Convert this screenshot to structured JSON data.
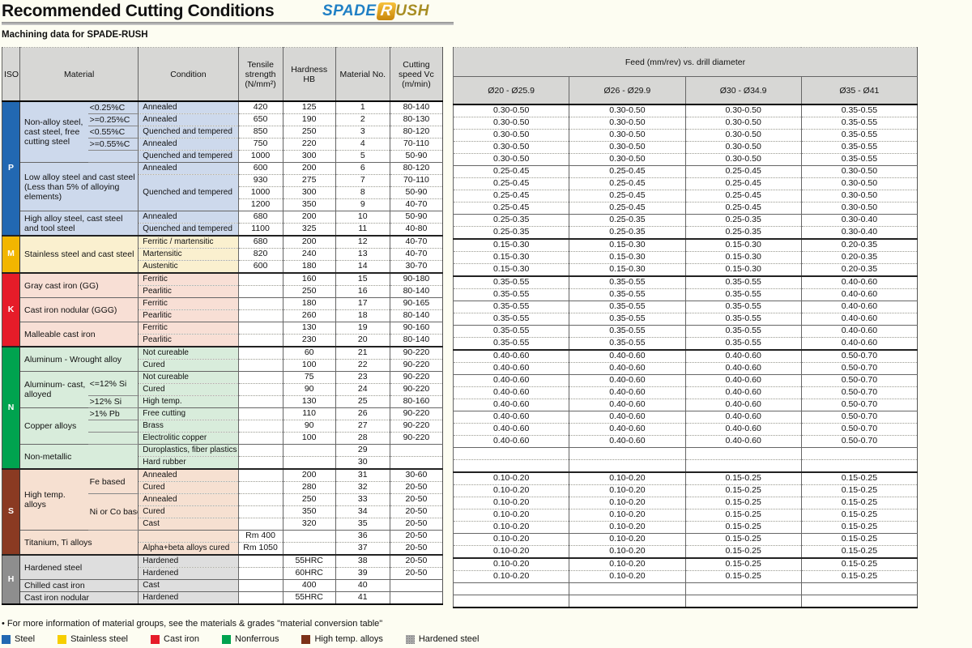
{
  "header": {
    "title": "Recommended Cutting Conditions",
    "subtitle": "Machining data for SPADE-RUSH",
    "logo": {
      "spade": "SPADE",
      "r": "R",
      "ush": "USH"
    }
  },
  "left_columns": {
    "iso": "ISO",
    "material": "Material",
    "condition": "Condition",
    "tensile": "Tensile strength (N/mm²)",
    "hardness": "Hardness HB",
    "material_no": "Material No.",
    "cutting_speed": "Cutting speed Vc (m/min)"
  },
  "feed": {
    "title": "Feed (mm/rev) vs. drill diameter",
    "diameters": [
      "Ø20 - Ø25.9",
      "Ø26 - Ø29.9",
      "Ø30 - Ø34.9",
      "Ø35 - Ø41"
    ]
  },
  "groups": {
    "P": {
      "label": "P",
      "band": "#2268b2",
      "light": "#cdd9ec"
    },
    "M": {
      "label": "M",
      "band": "#f2b600",
      "light": "#faf0cf"
    },
    "K": {
      "label": "K",
      "band": "#e61c29",
      "light": "#f8dfd5"
    },
    "N": {
      "label": "N",
      "band": "#00a34f",
      "light": "#d8ecdb"
    },
    "S": {
      "label": "S",
      "band": "#8a3a22",
      "light": "#f6e0d1"
    },
    "H": {
      "label": "H",
      "band": "#8e8e8e",
      "light": "#dedede"
    }
  },
  "rows": [
    {
      "g": "P",
      "b": "g",
      "iso": {
        "t": "P",
        "s": 11
      },
      "mat": {
        "t": "Non-alloy steel, cast steel, free cutting steel",
        "s": 5,
        "c": 1
      },
      "sub": {
        "t": "<0.25%C",
        "s": 1
      },
      "cond": {
        "t": "Annealed"
      },
      "ts": "420",
      "hb": "125",
      "no": "1",
      "vc": "80-140",
      "f": [
        "0.30-0.50",
        "0.30-0.50",
        "0.30-0.50",
        "0.35-0.55"
      ]
    },
    {
      "g": "P",
      "b": "r",
      "sub": {
        "t": ">=0.25%C",
        "s": 1
      },
      "cond": {
        "t": "Annealed"
      },
      "ts": "650",
      "hb": "190",
      "no": "2",
      "vc": "80-130",
      "f": [
        "0.30-0.50",
        "0.30-0.50",
        "0.30-0.50",
        "0.35-0.55"
      ]
    },
    {
      "g": "P",
      "b": "r",
      "sub": {
        "t": "<0.55%C",
        "s": 1
      },
      "cond": {
        "t": "Quenched and tempered"
      },
      "ts": "850",
      "hb": "250",
      "no": "3",
      "vc": "80-120",
      "f": [
        "0.30-0.50",
        "0.30-0.50",
        "0.30-0.50",
        "0.35-0.55"
      ]
    },
    {
      "g": "P",
      "b": "r",
      "sub": {
        "t": ">=0.55%C",
        "s": 1
      },
      "cond": {
        "t": "Annealed"
      },
      "ts": "750",
      "hb": "220",
      "no": "4",
      "vc": "70-110",
      "f": [
        "0.30-0.50",
        "0.30-0.50",
        "0.30-0.50",
        "0.35-0.55"
      ]
    },
    {
      "g": "P",
      "b": "r",
      "sub": {
        "t": "",
        "s": 1
      },
      "cond": {
        "t": "Quenched and tempered"
      },
      "ts": "1000",
      "hb": "300",
      "no": "5",
      "vc": "50-90",
      "f": [
        "0.30-0.50",
        "0.30-0.50",
        "0.30-0.50",
        "0.35-0.55"
      ]
    },
    {
      "g": "P",
      "b": "m",
      "mat": {
        "t": "Low alloy steel and cast steel (Less than 5% of alloying elements)",
        "s": 4,
        "c": 2
      },
      "cond": {
        "t": "Annealed"
      },
      "ts": "600",
      "hb": "200",
      "no": "6",
      "vc": "80-120",
      "f": [
        "0.25-0.45",
        "0.25-0.45",
        "0.25-0.45",
        "0.30-0.50"
      ]
    },
    {
      "g": "P",
      "b": "r",
      "cond": {
        "t": "Quenched and tempered",
        "s": 3
      },
      "ts": "930",
      "hb": "275",
      "no": "7",
      "vc": "70-110",
      "f": [
        "0.25-0.45",
        "0.25-0.45",
        "0.25-0.45",
        "0.30-0.50"
      ]
    },
    {
      "g": "P",
      "b": "r",
      "ts": "1000",
      "hb": "300",
      "no": "8",
      "vc": "50-90",
      "f": [
        "0.25-0.45",
        "0.25-0.45",
        "0.25-0.45",
        "0.30-0.50"
      ]
    },
    {
      "g": "P",
      "b": "r",
      "ts": "1200",
      "hb": "350",
      "no": "9",
      "vc": "40-70",
      "f": [
        "0.25-0.45",
        "0.25-0.45",
        "0.25-0.45",
        "0.30-0.50"
      ]
    },
    {
      "g": "P",
      "b": "m",
      "mat": {
        "t": "High alloy steel, cast steel and tool steel",
        "s": 2,
        "c": 2
      },
      "cond": {
        "t": "Annealed"
      },
      "ts": "680",
      "hb": "200",
      "no": "10",
      "vc": "50-90",
      "f": [
        "0.25-0.35",
        "0.25-0.35",
        "0.25-0.35",
        "0.30-0.40"
      ]
    },
    {
      "g": "P",
      "b": "r",
      "cond": {
        "t": "Quenched and tempered"
      },
      "ts": "1100",
      "hb": "325",
      "no": "11",
      "vc": "40-80",
      "f": [
        "0.25-0.35",
        "0.25-0.35",
        "0.25-0.35",
        "0.30-0.40"
      ]
    },
    {
      "g": "M",
      "b": "g",
      "iso": {
        "t": "M",
        "s": 3
      },
      "mat": {
        "t": "Stainless steel and cast steel",
        "s": 3,
        "c": 2
      },
      "cond": {
        "t": "Ferritic / martensitic"
      },
      "ts": "680",
      "hb": "200",
      "no": "12",
      "vc": "40-70",
      "f": [
        "0.15-0.30",
        "0.15-0.30",
        "0.15-0.30",
        "0.20-0.35"
      ]
    },
    {
      "g": "M",
      "b": "r",
      "cond": {
        "t": "Martensitic"
      },
      "ts": "820",
      "hb": "240",
      "no": "13",
      "vc": "40-70",
      "f": [
        "0.15-0.30",
        "0.15-0.30",
        "0.15-0.30",
        "0.20-0.35"
      ]
    },
    {
      "g": "M",
      "b": "r",
      "cond": {
        "t": "Austenitic"
      },
      "ts": "600",
      "hb": "180",
      "no": "14",
      "vc": "30-70",
      "f": [
        "0.15-0.30",
        "0.15-0.30",
        "0.15-0.30",
        "0.20-0.35"
      ]
    },
    {
      "g": "K",
      "b": "g",
      "iso": {
        "t": "K",
        "s": 6
      },
      "mat": {
        "t": "Gray cast iron (GG)",
        "s": 2,
        "c": 2
      },
      "cond": {
        "t": "Ferritic"
      },
      "ts": "",
      "hb": "160",
      "no": "15",
      "vc": "90-180",
      "f": [
        "0.35-0.55",
        "0.35-0.55",
        "0.35-0.55",
        "0.40-0.60"
      ]
    },
    {
      "g": "K",
      "b": "r",
      "cond": {
        "t": "Pearlitic"
      },
      "ts": "",
      "hb": "250",
      "no": "16",
      "vc": "80-140",
      "f": [
        "0.35-0.55",
        "0.35-0.55",
        "0.35-0.55",
        "0.40-0.60"
      ]
    },
    {
      "g": "K",
      "b": "m",
      "mat": {
        "t": "Cast iron nodular (GGG)",
        "s": 2,
        "c": 2
      },
      "cond": {
        "t": "Ferritic"
      },
      "ts": "",
      "hb": "180",
      "no": "17",
      "vc": "90-165",
      "f": [
        "0.35-0.55",
        "0.35-0.55",
        "0.35-0.55",
        "0.40-0.60"
      ]
    },
    {
      "g": "K",
      "b": "r",
      "cond": {
        "t": "Pearlitic"
      },
      "ts": "",
      "hb": "260",
      "no": "18",
      "vc": "80-140",
      "f": [
        "0.35-0.55",
        "0.35-0.55",
        "0.35-0.55",
        "0.40-0.60"
      ]
    },
    {
      "g": "K",
      "b": "m",
      "mat": {
        "t": "Malleable cast iron",
        "s": 2,
        "c": 2
      },
      "cond": {
        "t": "Ferritic"
      },
      "ts": "",
      "hb": "130",
      "no": "19",
      "vc": "90-160",
      "f": [
        "0.35-0.55",
        "0.35-0.55",
        "0.35-0.55",
        "0.40-0.60"
      ]
    },
    {
      "g": "K",
      "b": "r",
      "cond": {
        "t": "Pearlitic"
      },
      "ts": "",
      "hb": "230",
      "no": "20",
      "vc": "80-140",
      "f": [
        "0.35-0.55",
        "0.35-0.55",
        "0.35-0.55",
        "0.40-0.60"
      ]
    },
    {
      "g": "N",
      "b": "g",
      "iso": {
        "t": "N",
        "s": 10
      },
      "mat": {
        "t": "Aluminum - Wrought alloy",
        "s": 2,
        "c": 2
      },
      "cond": {
        "t": "Not cureable"
      },
      "ts": "",
      "hb": "60",
      "no": "21",
      "vc": "90-220",
      "f": [
        "0.40-0.60",
        "0.40-0.60",
        "0.40-0.60",
        "0.50-0.70"
      ]
    },
    {
      "g": "N",
      "b": "r",
      "cond": {
        "t": "Cured"
      },
      "ts": "",
      "hb": "100",
      "no": "22",
      "vc": "90-220",
      "f": [
        "0.40-0.60",
        "0.40-0.60",
        "0.40-0.60",
        "0.50-0.70"
      ]
    },
    {
      "g": "N",
      "b": "m",
      "mat": {
        "t": "Aluminum- cast, alloyed",
        "s": 3,
        "c": 1
      },
      "sub": {
        "t": "<=12% Si",
        "s": 2
      },
      "cond": {
        "t": "Not cureable"
      },
      "ts": "",
      "hb": "75",
      "no": "23",
      "vc": "90-220",
      "f": [
        "0.40-0.60",
        "0.40-0.60",
        "0.40-0.60",
        "0.50-0.70"
      ]
    },
    {
      "g": "N",
      "b": "r",
      "cond": {
        "t": "Cured"
      },
      "ts": "",
      "hb": "90",
      "no": "24",
      "vc": "90-220",
      "f": [
        "0.40-0.60",
        "0.40-0.60",
        "0.40-0.60",
        "0.50-0.70"
      ]
    },
    {
      "g": "N",
      "b": "r",
      "sub": {
        "t": ">12% Si",
        "s": 1
      },
      "cond": {
        "t": "High temp."
      },
      "ts": "",
      "hb": "130",
      "no": "25",
      "vc": "80-160",
      "f": [
        "0.40-0.60",
        "0.40-0.60",
        "0.40-0.60",
        "0.50-0.70"
      ]
    },
    {
      "g": "N",
      "b": "m",
      "mat": {
        "t": "Copper alloys",
        "s": 3,
        "c": 1
      },
      "sub": {
        "t": ">1% Pb",
        "s": 1
      },
      "cond": {
        "t": "Free cutting"
      },
      "ts": "",
      "hb": "110",
      "no": "26",
      "vc": "90-220",
      "f": [
        "0.40-0.60",
        "0.40-0.60",
        "0.40-0.60",
        "0.50-0.70"
      ]
    },
    {
      "g": "N",
      "b": "r",
      "sub": {
        "t": "",
        "s": 1
      },
      "cond": {
        "t": "Brass"
      },
      "ts": "",
      "hb": "90",
      "no": "27",
      "vc": "90-220",
      "f": [
        "0.40-0.60",
        "0.40-0.60",
        "0.40-0.60",
        "0.50-0.70"
      ]
    },
    {
      "g": "N",
      "b": "r",
      "sub": {
        "t": "",
        "s": 1
      },
      "cond": {
        "t": "Electrolitic copper"
      },
      "ts": "",
      "hb": "100",
      "no": "28",
      "vc": "90-220",
      "f": [
        "0.40-0.60",
        "0.40-0.60",
        "0.40-0.60",
        "0.50-0.70"
      ]
    },
    {
      "g": "N",
      "b": "m",
      "mat": {
        "t": "Non-metallic",
        "s": 2,
        "c": 2
      },
      "cond": {
        "t": "Duroplastics, fiber plastics"
      },
      "ts": "",
      "hb": "",
      "no": "29",
      "vc": "",
      "f": [
        "",
        "",
        "",
        ""
      ]
    },
    {
      "g": "N",
      "b": "r",
      "cond": {
        "t": "Hard rubber"
      },
      "ts": "",
      "hb": "",
      "no": "30",
      "vc": "",
      "f": [
        "",
        "",
        "",
        ""
      ]
    },
    {
      "g": "S",
      "b": "g",
      "iso": {
        "t": "S",
        "s": 7
      },
      "mat": {
        "t": "High temp. alloys",
        "s": 5,
        "c": 1
      },
      "sub": {
        "t": "Fe based",
        "s": 2
      },
      "cond": {
        "t": "Annealed"
      },
      "ts": "",
      "hb": "200",
      "no": "31",
      "vc": "30-60",
      "f": [
        "0.10-0.20",
        "0.10-0.20",
        "0.15-0.25",
        "0.15-0.25"
      ]
    },
    {
      "g": "S",
      "b": "r",
      "cond": {
        "t": "Cured"
      },
      "ts": "",
      "hb": "280",
      "no": "32",
      "vc": "20-50",
      "f": [
        "0.10-0.20",
        "0.10-0.20",
        "0.15-0.25",
        "0.15-0.25"
      ]
    },
    {
      "g": "S",
      "b": "r",
      "sub": {
        "t": "Ni or Co based",
        "s": 3
      },
      "cond": {
        "t": "Annealed"
      },
      "ts": "",
      "hb": "250",
      "no": "33",
      "vc": "20-50",
      "f": [
        "0.10-0.20",
        "0.10-0.20",
        "0.15-0.25",
        "0.15-0.25"
      ]
    },
    {
      "g": "S",
      "b": "r",
      "cond": {
        "t": "Cured"
      },
      "ts": "",
      "hb": "350",
      "no": "34",
      "vc": "20-50",
      "f": [
        "0.10-0.20",
        "0.10-0.20",
        "0.15-0.25",
        "0.15-0.25"
      ]
    },
    {
      "g": "S",
      "b": "r",
      "cond": {
        "t": "Cast"
      },
      "ts": "",
      "hb": "320",
      "no": "35",
      "vc": "20-50",
      "f": [
        "0.10-0.20",
        "0.10-0.20",
        "0.15-0.25",
        "0.15-0.25"
      ]
    },
    {
      "g": "S",
      "b": "m",
      "mat": {
        "t": "Titanium, Ti alloys",
        "s": 2,
        "c": 2
      },
      "cond": {
        "t": ""
      },
      "ts": "Rm 400",
      "hb": "",
      "no": "36",
      "vc": "20-50",
      "f": [
        "0.10-0.20",
        "0.10-0.20",
        "0.15-0.25",
        "0.15-0.25"
      ]
    },
    {
      "g": "S",
      "b": "r",
      "cond": {
        "t": "Alpha+beta alloys cured"
      },
      "ts": "Rm 1050",
      "hb": "",
      "no": "37",
      "vc": "20-50",
      "f": [
        "0.10-0.20",
        "0.10-0.20",
        "0.15-0.25",
        "0.15-0.25"
      ]
    },
    {
      "g": "H",
      "b": "g",
      "iso": {
        "t": "H",
        "s": 4
      },
      "mat": {
        "t": "Hardened steel",
        "s": 2,
        "c": 2
      },
      "cond": {
        "t": "Hardened"
      },
      "ts": "",
      "hb": "55HRC",
      "no": "38",
      "vc": "20-50",
      "f": [
        "0.10-0.20",
        "0.10-0.20",
        "0.15-0.25",
        "0.15-0.25"
      ]
    },
    {
      "g": "H",
      "b": "r",
      "cond": {
        "t": "Hardened"
      },
      "ts": "",
      "hb": "60HRC",
      "no": "39",
      "vc": "20-50",
      "f": [
        "0.10-0.20",
        "0.10-0.20",
        "0.15-0.25",
        "0.15-0.25"
      ]
    },
    {
      "g": "H",
      "b": "m",
      "mat": {
        "t": "Chilled cast iron",
        "s": 1,
        "c": 2
      },
      "cond": {
        "t": "Cast"
      },
      "ts": "",
      "hb": "400",
      "no": "40",
      "vc": "",
      "f": [
        "",
        "",
        "",
        ""
      ]
    },
    {
      "g": "H",
      "b": "m",
      "mat": {
        "t": "Cast iron nodular",
        "s": 1,
        "c": 2
      },
      "cond": {
        "t": "Hardened"
      },
      "ts": "",
      "hb": "55HRC",
      "no": "41",
      "vc": "",
      "f": [
        "",
        "",
        "",
        ""
      ]
    }
  ],
  "footer": {
    "note": "• For more information of material groups, see the materials & grades \"material conversion table\"",
    "legend": [
      {
        "label": "Steel",
        "color": "#2268b2",
        "hatch": false
      },
      {
        "label": "Stainless steel",
        "color": "#f7ce00",
        "hatch": false
      },
      {
        "label": "Cast iron",
        "color": "#e61c29",
        "hatch": false
      },
      {
        "label": "Nonferrous",
        "color": "#00a34f",
        "hatch": false
      },
      {
        "label": "High temp. alloys",
        "color": "#7c3118",
        "hatch": false
      },
      {
        "label": "Hardened steel",
        "color": "#a8a8a8",
        "hatch": true
      }
    ]
  }
}
